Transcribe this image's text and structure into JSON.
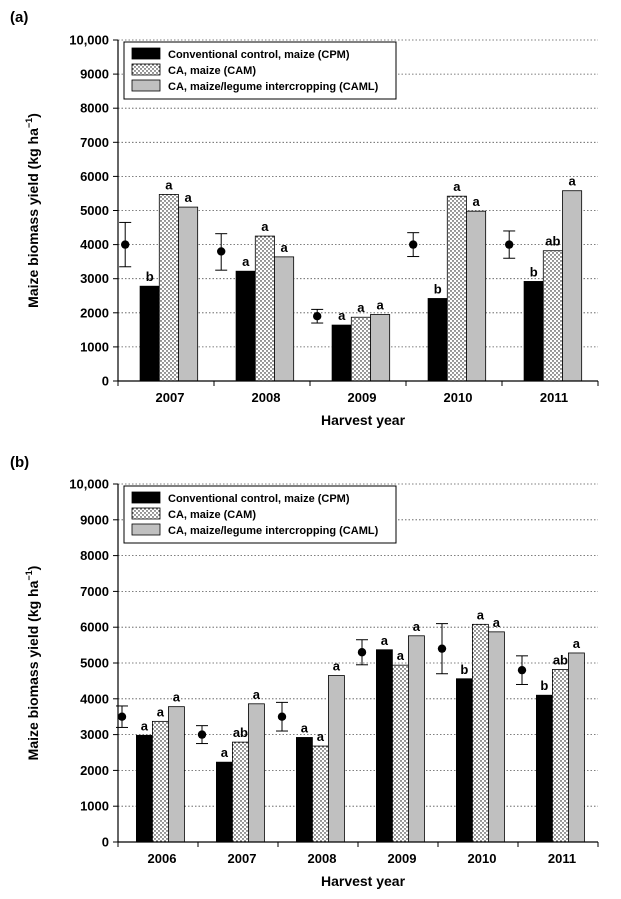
{
  "colors": {
    "CPM": "#000000",
    "CAM": "#ffffff",
    "CAML": "#c0c0c0"
  },
  "chart_data": [
    {
      "type": "bar",
      "panel_label": "(a)",
      "xlabel": "Harvest year",
      "ylabel": "Maize biomass yield (kg ha",
      "ylabel_sup": "−1",
      "ylabel_close": ")",
      "ylim": [
        0,
        10000
      ],
      "yticks": [
        "0",
        "1000",
        "2000",
        "3000",
        "4000",
        "5000",
        "6000",
        "7000",
        "8000",
        "9000",
        "10,000"
      ],
      "grid": true,
      "legend_position": "top-left",
      "categories": [
        "2007",
        "2008",
        "2009",
        "2010",
        "2011"
      ],
      "series": [
        {
          "name": "Conventional control, maize (CPM)",
          "key": "CPM",
          "values": [
            2780,
            3220,
            1640,
            2420,
            2920
          ],
          "letters": [
            "b",
            "a",
            "a",
            "b",
            "b"
          ]
        },
        {
          "name": "CA, maize (CAM)",
          "key": "CAM",
          "values": [
            5470,
            4250,
            1870,
            5420,
            3820
          ],
          "letters": [
            "a",
            "a",
            "a",
            "a",
            "ab"
          ]
        },
        {
          "name": "CA, maize/legume intercropping (CAML)",
          "key": "CAML",
          "values": [
            5100,
            3640,
            1950,
            4980,
            5580
          ],
          "letters": [
            "a",
            "a",
            "a",
            "a",
            "a"
          ]
        }
      ],
      "error_points": [
        {
          "category": "2007",
          "value": 4000,
          "low": 3350,
          "high": 4650
        },
        {
          "category": "2008",
          "value": 3800,
          "low": 3250,
          "high": 4320
        },
        {
          "category": "2009",
          "value": 1900,
          "low": 1700,
          "high": 2100
        },
        {
          "category": "2010",
          "value": 4000,
          "low": 3650,
          "high": 4350
        },
        {
          "category": "2011",
          "value": 4000,
          "low": 3600,
          "high": 4400
        }
      ]
    },
    {
      "type": "bar",
      "panel_label": "(b)",
      "xlabel": "Harvest year",
      "ylabel": "Maize biomass yield (kg ha",
      "ylabel_sup": "−1",
      "ylabel_close": ")",
      "ylim": [
        0,
        10000
      ],
      "yticks": [
        "0",
        "1000",
        "2000",
        "3000",
        "4000",
        "5000",
        "6000",
        "7000",
        "8000",
        "9000",
        "10,000"
      ],
      "grid": true,
      "legend_position": "top-left",
      "categories": [
        "2006",
        "2007",
        "2008",
        "2009",
        "2010",
        "2011"
      ],
      "series": [
        {
          "name": "Conventional control, maize (CPM)",
          "key": "CPM",
          "values": [
            2980,
            2230,
            2920,
            5370,
            4560,
            4100
          ],
          "letters": [
            "a",
            "a",
            "a",
            "a",
            "b",
            "b"
          ]
        },
        {
          "name": "CA, maize (CAM)",
          "key": "CAM",
          "values": [
            3370,
            2790,
            2680,
            4940,
            6080,
            4820
          ],
          "letters": [
            "a",
            "ab",
            "a",
            "a",
            "a",
            "ab"
          ]
        },
        {
          "name": "CA, maize/legume intercropping (CAML)",
          "key": "CAML",
          "values": [
            3780,
            3860,
            4650,
            5760,
            5870,
            5280
          ],
          "letters": [
            "a",
            "a",
            "a",
            "a",
            "a",
            "a"
          ]
        }
      ],
      "error_points": [
        {
          "category": "2006",
          "value": 3500,
          "low": 3200,
          "high": 3800
        },
        {
          "category": "2007",
          "value": 3000,
          "low": 2750,
          "high": 3250
        },
        {
          "category": "2008",
          "value": 3500,
          "low": 3100,
          "high": 3900
        },
        {
          "category": "2009",
          "value": 5300,
          "low": 4950,
          "high": 5650
        },
        {
          "category": "2010",
          "value": 5400,
          "low": 4700,
          "high": 6100
        },
        {
          "category": "2011",
          "value": 4800,
          "low": 4400,
          "high": 5200
        }
      ]
    }
  ]
}
